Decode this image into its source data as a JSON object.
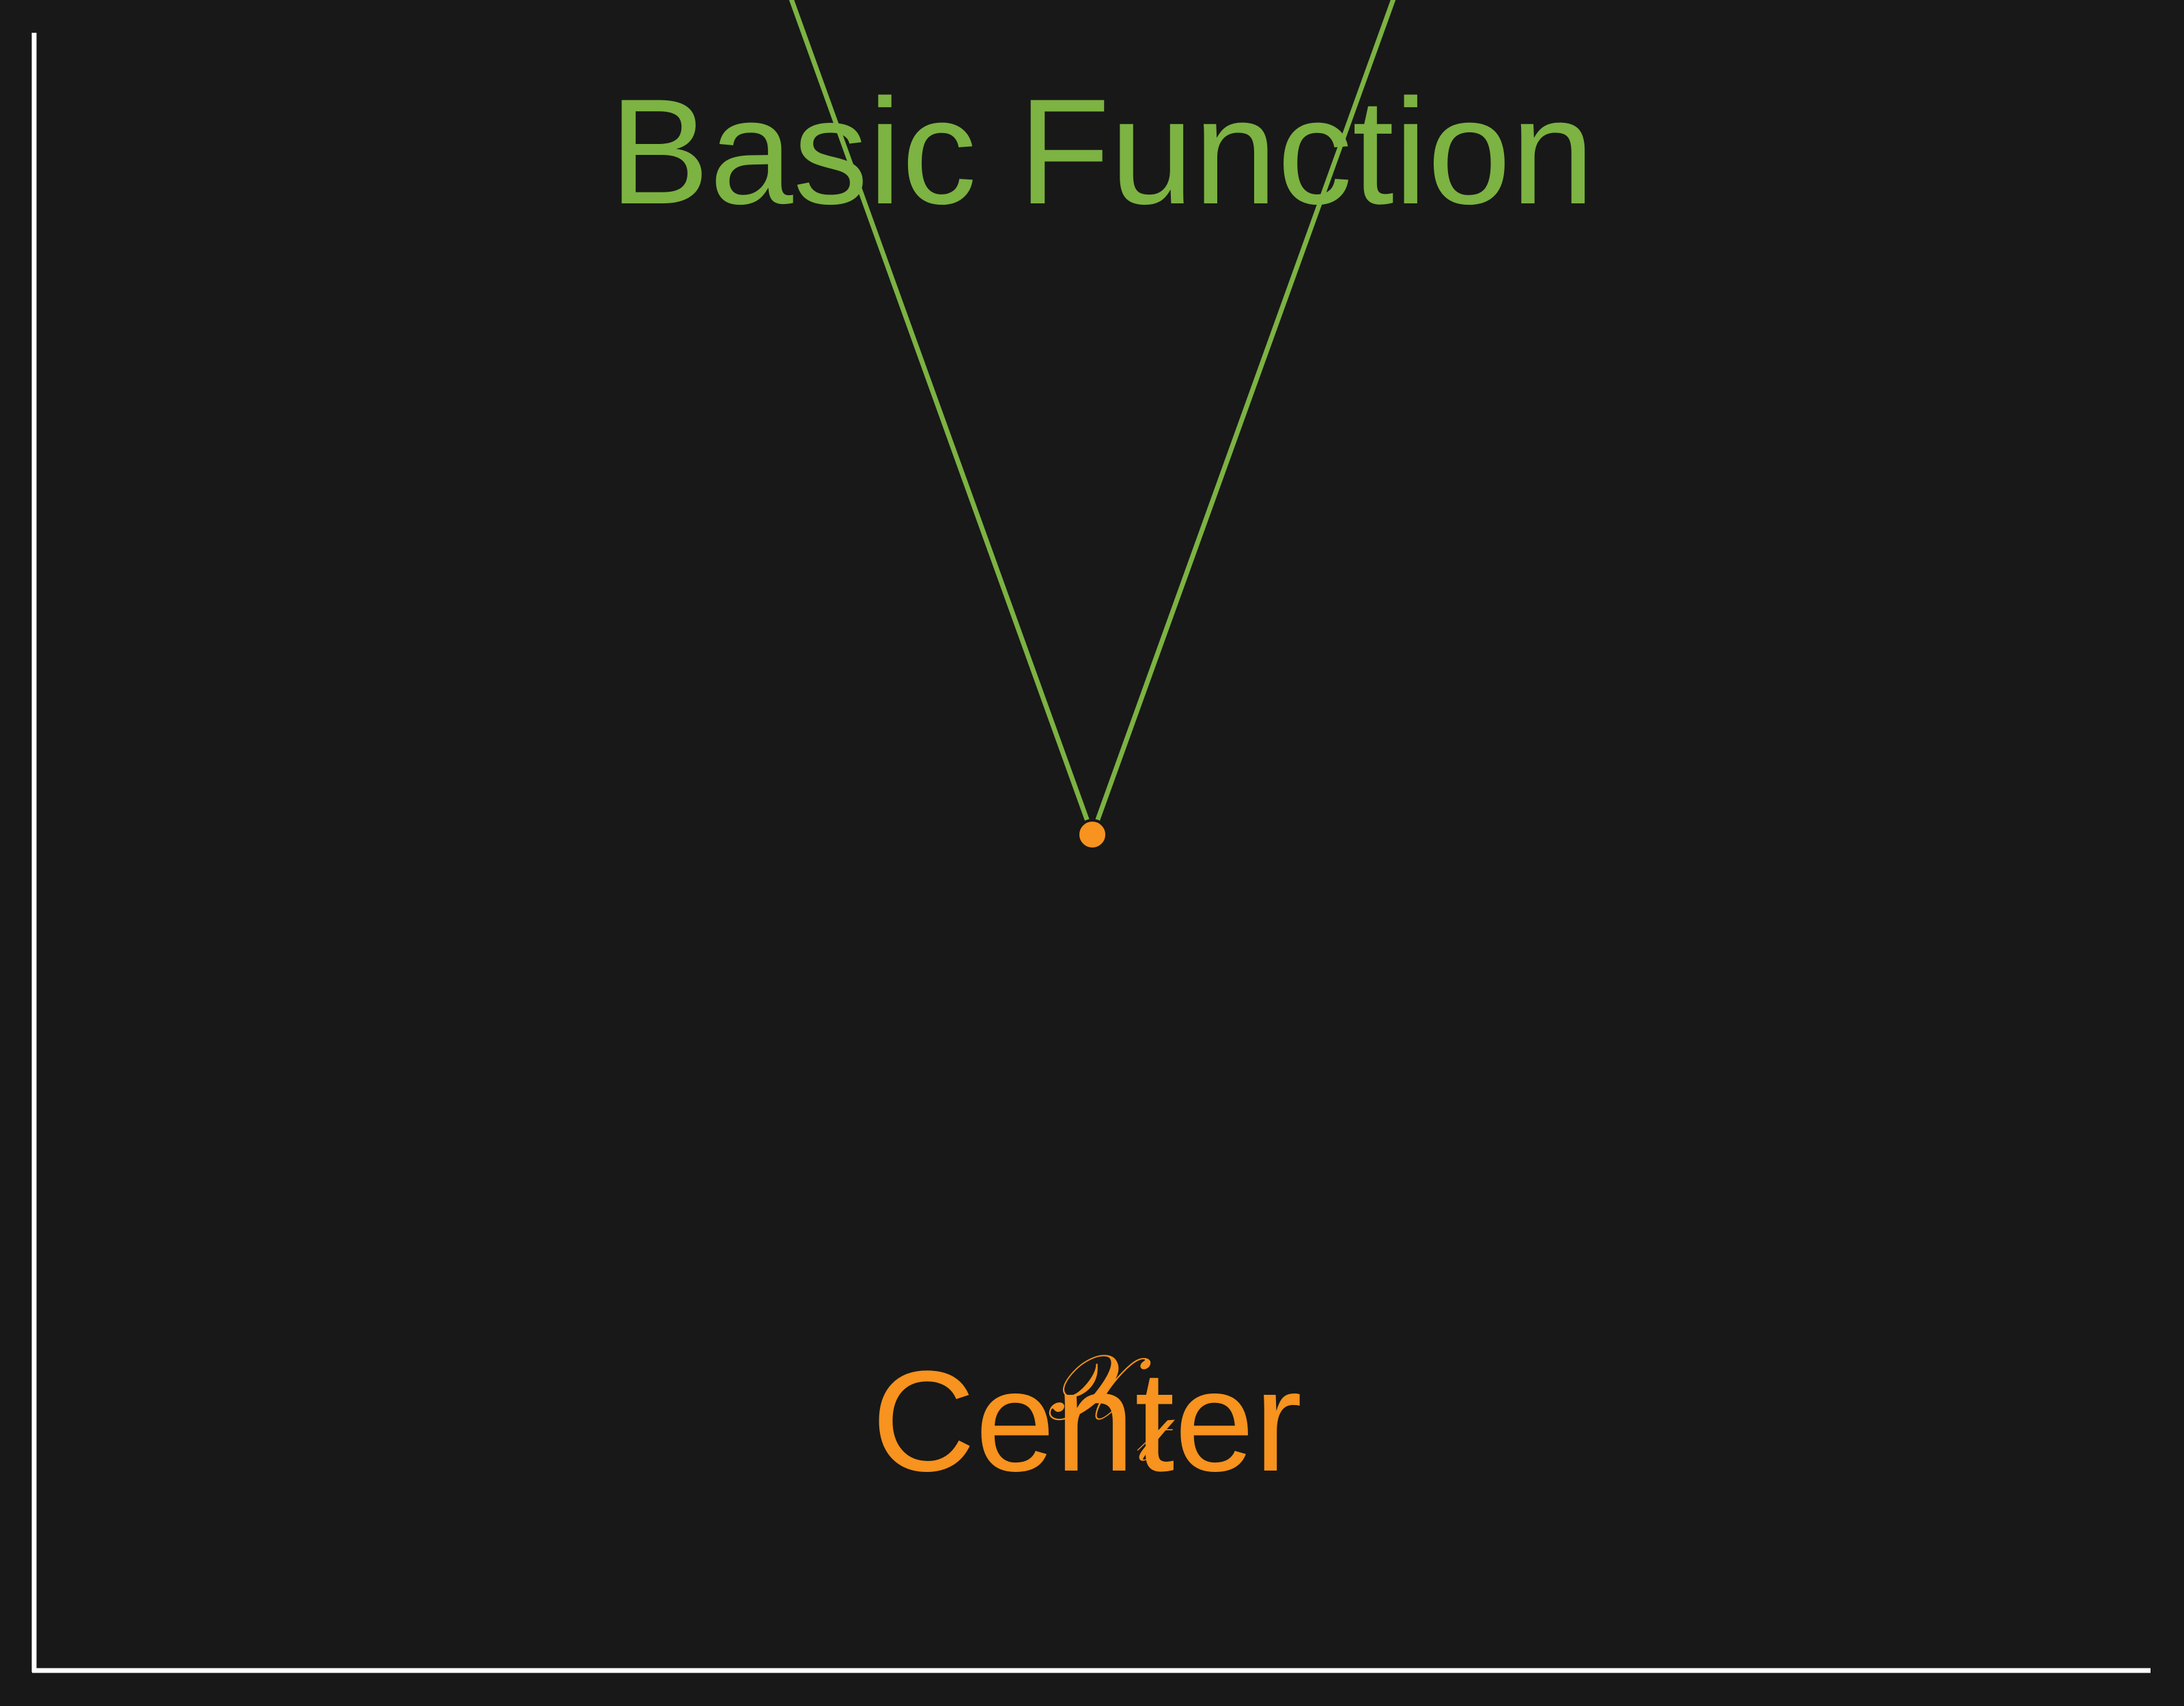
{
  "chart_data": {
    "type": "line",
    "title": "Basic Function",
    "xlim": [
      -1.5,
      1.5
    ],
    "ylim": [
      0,
      5
    ],
    "series": [
      {
        "name": "",
        "x": [
          -1.0,
          0.0,
          1.0
        ],
        "y": [
          3.57,
          1.22,
          3.57
        ]
      }
    ],
    "points": [
      {
        "label": "Center",
        "x": 0.0,
        "y": 1.22
      }
    ],
    "annotation_glyphs": [
      "𝒳",
      "𝓉"
    ],
    "grid": false,
    "legend": "none"
  },
  "colors": {
    "background": "#181818",
    "axis": "#ffffff",
    "curve": "#7cb342",
    "center": "#f7931e"
  }
}
